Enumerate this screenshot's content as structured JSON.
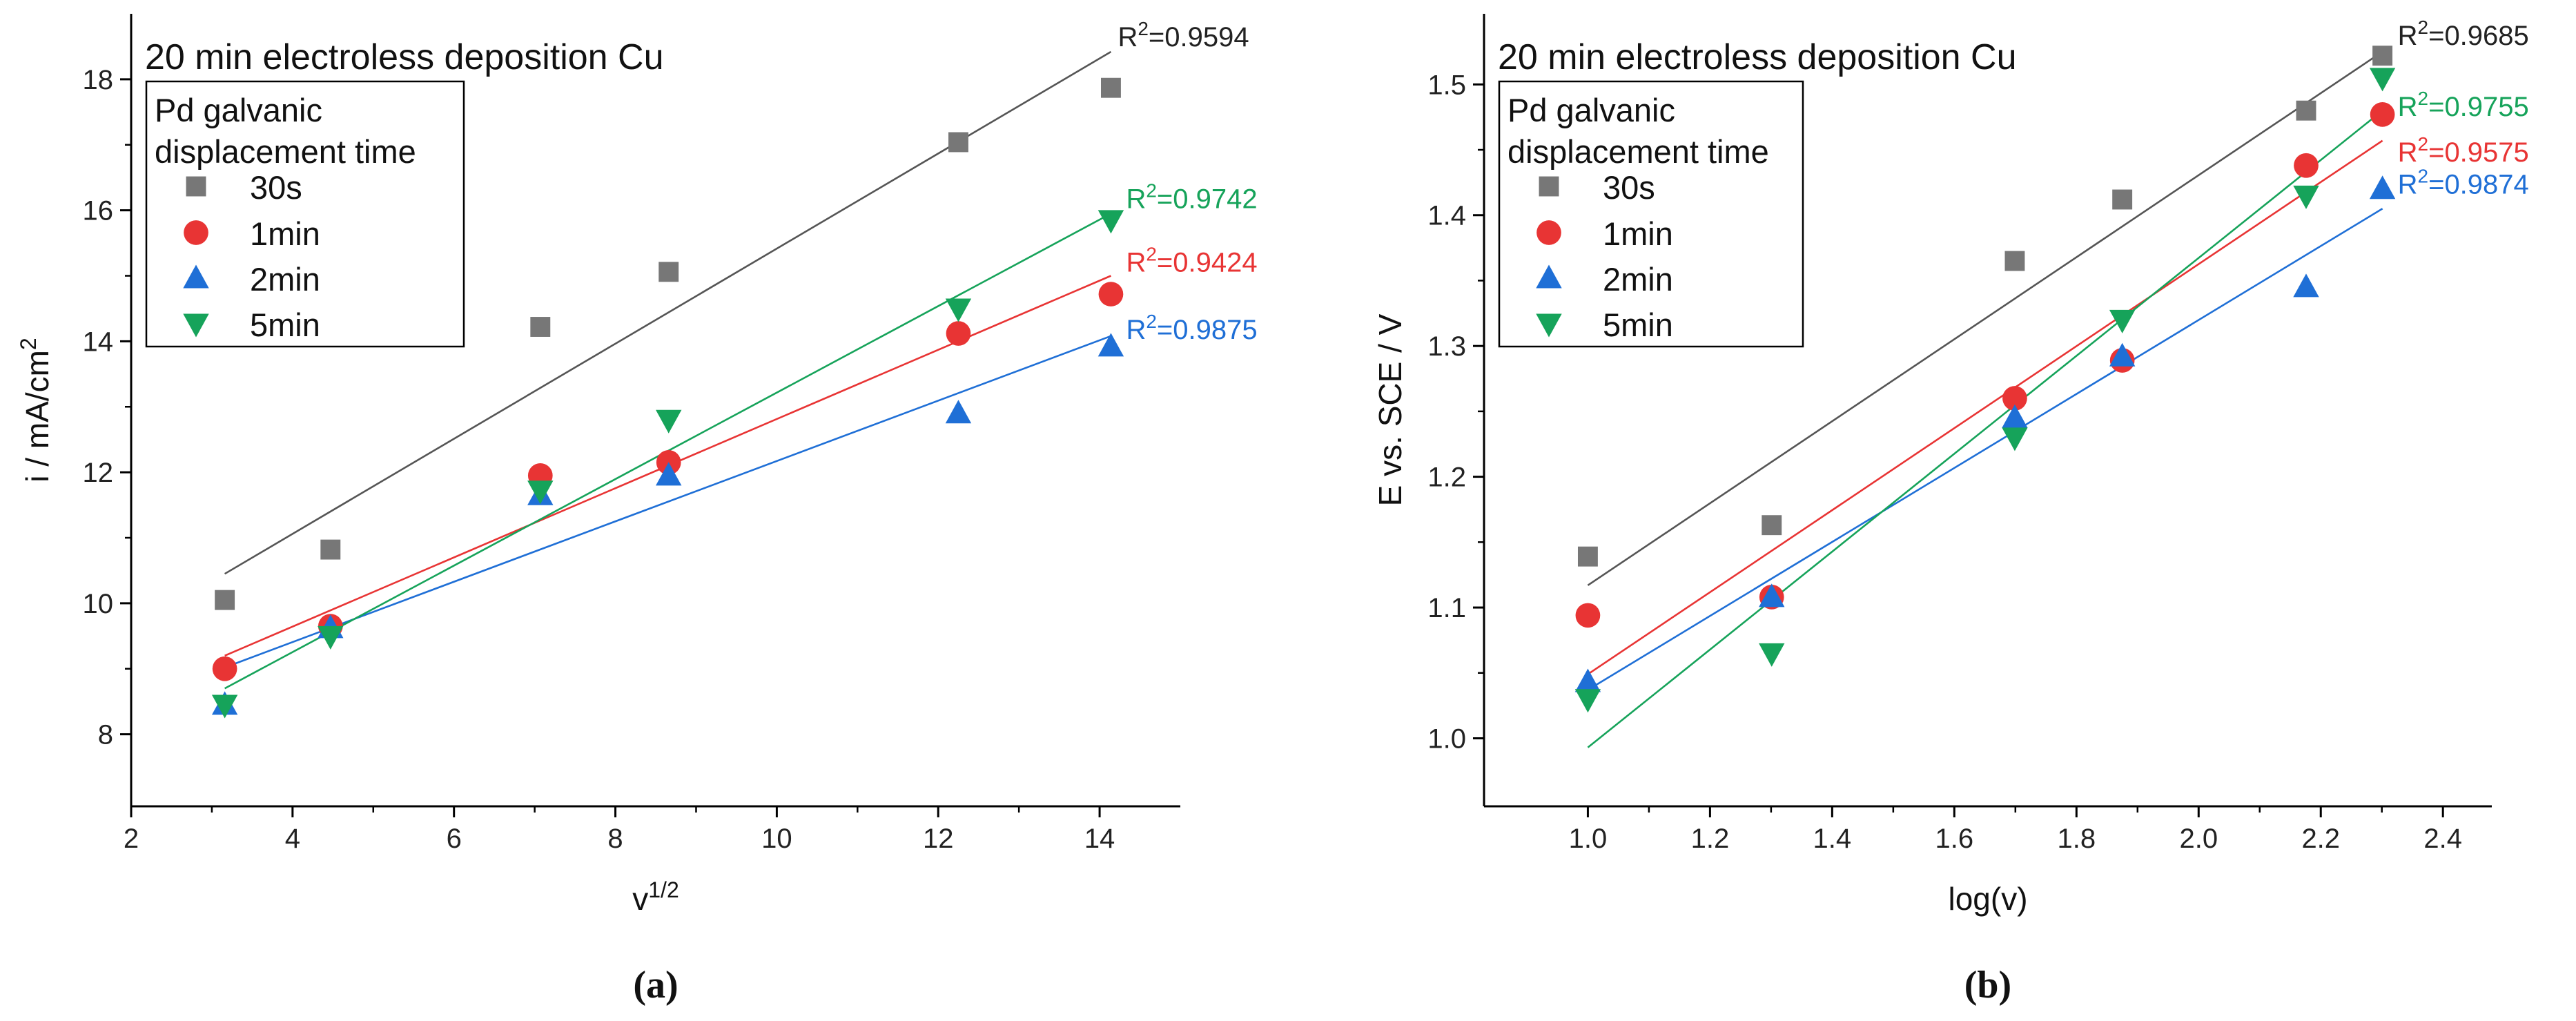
{
  "chart_data": [
    {
      "type": "scatter",
      "panel_label": "(a)",
      "title": "20 min electroless deposition Cu",
      "xlabel": "v",
      "xlabel_sup": "1/2",
      "ylabel": "i / mA/cm",
      "ylabel_sup": "2",
      "xlim": [
        2,
        15
      ],
      "ylim": [
        6.9,
        19.0
      ],
      "xticks": [
        2,
        4,
        6,
        8,
        10,
        12,
        14
      ],
      "yticks": [
        8,
        10,
        12,
        14,
        16,
        18
      ],
      "x_tick_labels": [
        "2",
        "4",
        "6",
        "8",
        "10",
        "12",
        "14"
      ],
      "y_tick_labels": [
        "8",
        "10",
        "12",
        "14",
        "16",
        "18"
      ],
      "legend": {
        "title": "Pd galvanic\ndisplacement time",
        "placement": "top-left"
      },
      "x": [
        3.16,
        4.47,
        7.07,
        8.66,
        12.25,
        14.14
      ],
      "series": [
        {
          "name": "30s",
          "marker": "square",
          "color": "#777777",
          "values": [
            10.05,
            10.82,
            14.22,
            15.06,
            17.04,
            17.87
          ],
          "fit": [
            [
              3.16,
              10.45
            ],
            [
              14.14,
              18.42
            ]
          ],
          "r2_label": "R",
          "r2_value": "=0.9594"
        },
        {
          "name": "1min",
          "marker": "circle",
          "color": "#e83434",
          "values": [
            9.0,
            9.65,
            11.95,
            12.15,
            14.12,
            14.72
          ],
          "fit": [
            [
              3.16,
              9.2
            ],
            [
              14.14,
              15.0
            ]
          ],
          "r2_label": "R",
          "r2_value": "=0.9424"
        },
        {
          "name": "2min",
          "marker": "triangle-up",
          "color": "#1f6fd6",
          "values": [
            8.45,
            9.62,
            11.65,
            11.95,
            12.9,
            13.92
          ],
          "fit": [
            [
              3.16,
              9.02
            ],
            [
              14.14,
              14.08
            ]
          ],
          "r2_label": "R",
          "r2_value": "=0.9875"
        },
        {
          "name": "5min",
          "marker": "triangle-down",
          "color": "#16a35a",
          "values": [
            8.45,
            9.5,
            11.72,
            12.8,
            14.5,
            15.85
          ],
          "fit": [
            [
              3.16,
              8.7
            ],
            [
              14.14,
              15.95
            ]
          ],
          "r2_label": "R",
          "r2_value": "=0.9742"
        }
      ]
    },
    {
      "type": "scatter",
      "panel_label": "(b)",
      "title": "20 min electroless deposition Cu",
      "xlabel": "log(v)",
      "xlabel_sup": "",
      "ylabel": "E vs. SCE / V",
      "ylabel_sup": "",
      "xlim": [
        0.83,
        2.48
      ],
      "ylim": [
        0.948,
        1.554
      ],
      "xticks": [
        1.0,
        1.2,
        1.4,
        1.6,
        1.8,
        2.0,
        2.2,
        2.4
      ],
      "yticks": [
        1.0,
        1.1,
        1.2,
        1.3,
        1.4,
        1.5
      ],
      "x_tick_labels": [
        "1.0",
        "1.2",
        "1.4",
        "1.6",
        "1.8",
        "2.0",
        "2.2",
        "2.4"
      ],
      "y_tick_labels": [
        "1.0",
        "1.1",
        "1.2",
        "1.3",
        "1.4",
        "1.5"
      ],
      "legend": {
        "title": "Pd galvanic\ndisplacement time",
        "placement": "top-left"
      },
      "x": [
        1.0,
        1.301,
        1.699,
        1.875,
        2.176,
        2.301
      ],
      "series": [
        {
          "name": "30s",
          "marker": "square",
          "color": "#777777",
          "values": [
            1.139,
            1.163,
            1.365,
            1.412,
            1.48,
            1.522
          ],
          "fit": [
            [
              1.0,
              1.117
            ],
            [
              2.301,
              1.525
            ]
          ],
          "r2_label": "R",
          "r2_value": "=0.9685"
        },
        {
          "name": "1min",
          "marker": "circle",
          "color": "#e83434",
          "values": [
            1.094,
            1.108,
            1.26,
            1.289,
            1.438,
            1.477
          ],
          "fit": [
            [
              1.0,
              1.049
            ],
            [
              2.301,
              1.457
            ]
          ],
          "r2_label": "R",
          "r2_value": "=0.9575"
        },
        {
          "name": "2min",
          "marker": "triangle-up",
          "color": "#1f6fd6",
          "values": [
            1.043,
            1.108,
            1.245,
            1.292,
            1.345,
            1.42
          ],
          "fit": [
            [
              1.0,
              1.037
            ],
            [
              2.301,
              1.405
            ]
          ],
          "r2_label": "R",
          "r2_value": "=0.9874"
        },
        {
          "name": "5min",
          "marker": "triangle-down",
          "color": "#16a35a",
          "values": [
            1.03,
            1.065,
            1.23,
            1.32,
            1.415,
            1.505
          ],
          "fit": [
            [
              1.0,
              0.993
            ],
            [
              2.301,
              1.48
            ]
          ],
          "r2_label": "R",
          "r2_value": "=0.9755"
        }
      ]
    }
  ]
}
